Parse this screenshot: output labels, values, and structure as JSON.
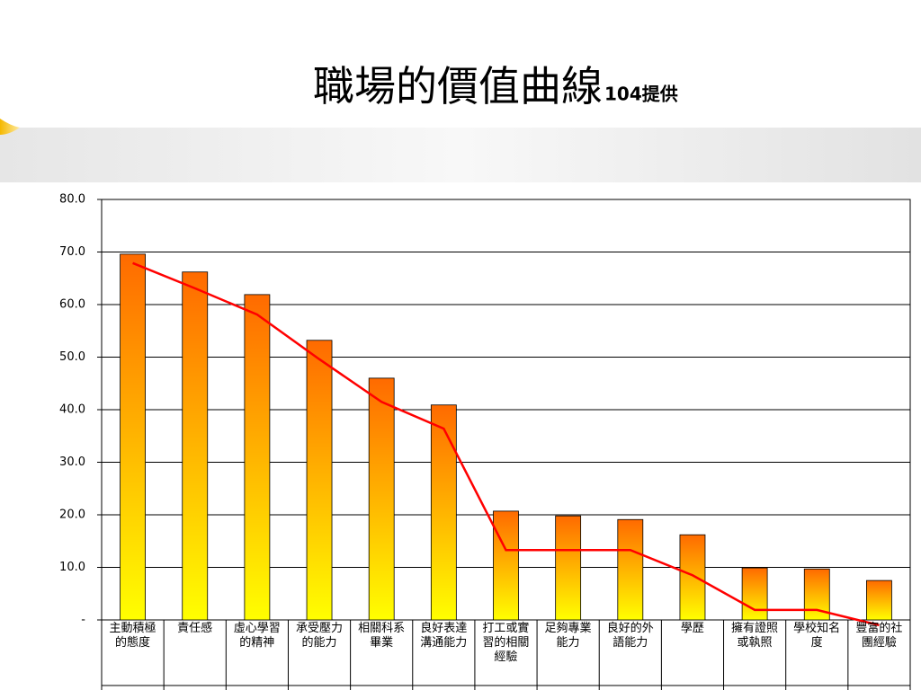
{
  "chart_data": {
    "type": "bar",
    "title": "職場的價值曲線",
    "subtitle": "104提供",
    "categories": [
      "主動積極的態度",
      "責任感",
      "虛心學習的精神",
      "承受壓力的能力",
      "相關科系畢業",
      "良好表達溝通能力",
      "打工或實習的相關經驗",
      "足夠專業能力",
      "良好的外語能力",
      "學歷",
      "擁有證照或執照",
      "學校知名度",
      "豐富的社團經驗"
    ],
    "series": [
      {
        "type": "bar",
        "color": "#ff6a00",
        "color2": "#ffff00",
        "values": [
          69.6,
          66.2,
          61.9,
          53.2,
          46.0,
          40.9,
          20.7,
          19.8,
          19.1,
          16.2,
          9.9,
          9.7,
          7.5
        ]
      },
      {
        "type": "line",
        "color": "#ff0000",
        "values": [
          67.9,
          63.1,
          58.1,
          49.6,
          41.5,
          36.4,
          13.3,
          13.3,
          13.3,
          8.5,
          1.9,
          1.9,
          -1.0
        ]
      }
    ],
    "ylim": [
      0,
      80
    ],
    "yticks": [
      {
        "value": 0,
        "label": "-"
      },
      {
        "value": 10,
        "label": "10.0"
      },
      {
        "value": 20,
        "label": "20.0"
      },
      {
        "value": 30,
        "label": "30.0"
      },
      {
        "value": 40,
        "label": "40.0"
      },
      {
        "value": 50,
        "label": "50.0"
      },
      {
        "value": 60,
        "label": "60.0"
      },
      {
        "value": 70,
        "label": "70.0"
      },
      {
        "value": 80,
        "label": "80.0"
      }
    ],
    "grid": true
  }
}
